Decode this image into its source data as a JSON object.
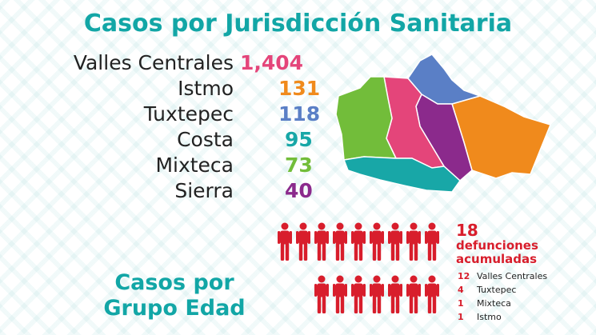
{
  "title": "Casos por Jurisdicción Sanitaria",
  "jurisdictions": [
    {
      "name": "Valles Centrales",
      "count": "1,404",
      "color": "#e4457a"
    },
    {
      "name": "Istmo",
      "count": "131",
      "color": "#f08a1c"
    },
    {
      "name": "Tuxtepec",
      "count": "118",
      "color": "#5a7fc6"
    },
    {
      "name": "Costa",
      "count": "95",
      "color": "#18a7a7"
    },
    {
      "name": "Mixteca",
      "count": "73",
      "color": "#72bd3a"
    },
    {
      "name": "Sierra",
      "count": "40",
      "color": "#8b2a8c"
    }
  ],
  "map": {
    "icon": "oaxaca-regions-map",
    "region_colors": {
      "mixteca": "#72bd3a",
      "valles_centrales": "#e4457a",
      "tuxtepec": "#5a7fc6",
      "sierra": "#8b2a8c",
      "istmo": "#f08a1c",
      "costa": "#18a7a7"
    }
  },
  "deaths": {
    "total": "18",
    "label": "defunciones acumuladas",
    "figure_color": "#d81e2c",
    "figure_icon": "person-icon",
    "breakdown": [
      {
        "count": "12",
        "name": "Valles Centrales"
      },
      {
        "count": "4",
        "name": "Tuxtepec"
      },
      {
        "count": "1",
        "name": "Mixteca"
      },
      {
        "count": "1",
        "name": "Istmo"
      }
    ]
  },
  "age_section": {
    "title": "Casos por Grupo Edad"
  }
}
